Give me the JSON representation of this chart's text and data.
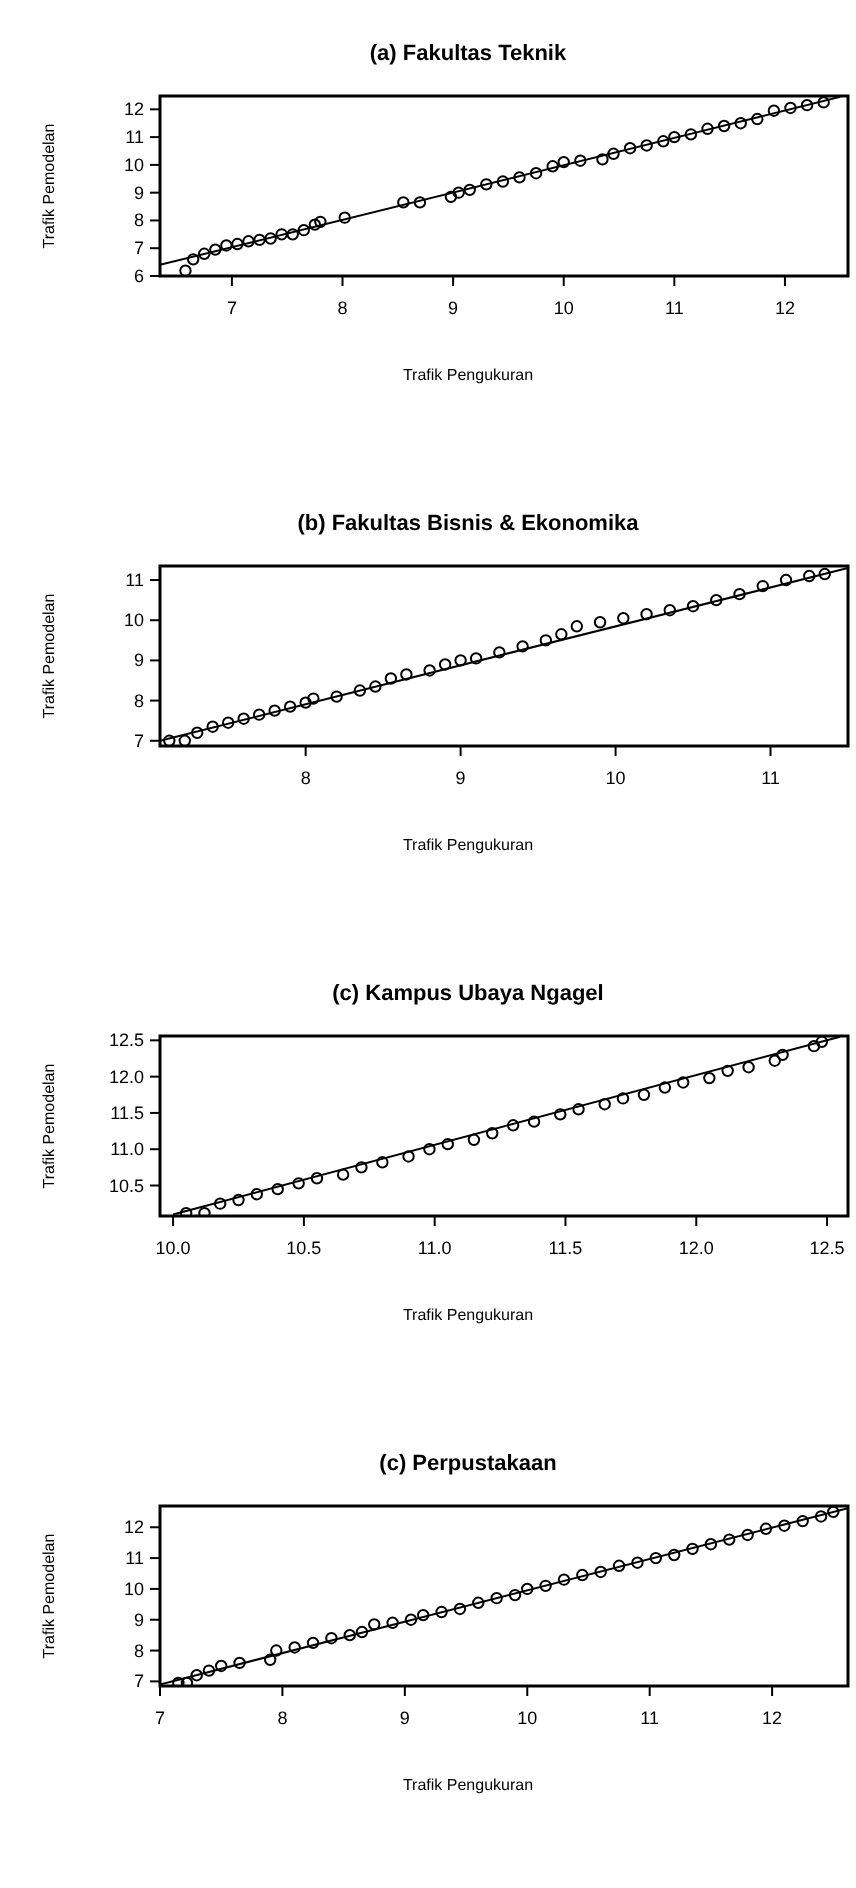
{
  "chart_data": [
    {
      "type": "scatter",
      "title": "(a) Fakultas Teknik",
      "xlabel": "Trafik Pengukuran",
      "ylabel": "Trafik Pemodelan",
      "xlim": [
        6.35,
        12.57
      ],
      "ylim": [
        6,
        12.48
      ],
      "xticks": [
        7,
        8,
        9,
        10,
        11,
        12
      ],
      "yticks": [
        6,
        7,
        8,
        9,
        10,
        11,
        12
      ],
      "grid": false,
      "series": [
        {
          "marker": "circle",
          "color": "#000000",
          "x": [
            6.58,
            6.65,
            6.75,
            6.85,
            6.95,
            7.05,
            7.15,
            7.25,
            7.35,
            7.45,
            7.55,
            7.65,
            7.75,
            7.8,
            8.02,
            8.55,
            8.7,
            8.98,
            9.05,
            9.15,
            9.3,
            9.45,
            9.6,
            9.75,
            9.9,
            10.0,
            10.15,
            10.35,
            10.45,
            10.6,
            10.75,
            10.9,
            11.0,
            11.15,
            11.3,
            11.45,
            11.6,
            11.75,
            11.9,
            12.05,
            12.2,
            12.35
          ],
          "values": [
            6.19,
            6.6,
            6.8,
            6.95,
            7.1,
            7.15,
            7.25,
            7.3,
            7.35,
            7.5,
            7.5,
            7.65,
            7.85,
            7.95,
            8.1,
            8.65,
            8.65,
            8.85,
            9.0,
            9.1,
            9.3,
            9.4,
            9.55,
            9.7,
            9.95,
            10.1,
            10.15,
            10.2,
            10.4,
            10.6,
            10.7,
            10.85,
            11.0,
            11.1,
            11.3,
            11.4,
            11.5,
            11.65,
            11.95,
            12.05,
            12.15,
            12.25
          ]
        },
        {
          "type": "line",
          "color": "#000000",
          "x": [
            6.35,
            12.5
          ],
          "values": [
            6.4,
            12.45
          ]
        }
      ]
    },
    {
      "type": "scatter",
      "title": "(b) Fakultas Bisnis & Ekonomika",
      "xlabel": "Trafik Pengukuran",
      "ylabel": "Trafik Pemodelan",
      "xlim": [
        7.06,
        11.5
      ],
      "ylim": [
        6.87,
        11.35
      ],
      "xticks": [
        8,
        9,
        10,
        11
      ],
      "yticks": [
        7,
        8,
        9,
        10,
        11
      ],
      "grid": false,
      "series": [
        {
          "marker": "circle",
          "color": "#000000",
          "x": [
            7.12,
            7.22,
            7.3,
            7.4,
            7.5,
            7.6,
            7.7,
            7.8,
            7.9,
            8.0,
            8.05,
            8.2,
            8.35,
            8.45,
            8.55,
            8.65,
            8.8,
            8.9,
            9.0,
            9.1,
            9.25,
            9.4,
            9.55,
            9.65,
            9.75,
            9.9,
            10.05,
            10.2,
            10.35,
            10.5,
            10.65,
            10.8,
            10.95,
            11.1,
            11.25,
            11.35
          ],
          "values": [
            7.0,
            7.0,
            7.2,
            7.35,
            7.45,
            7.55,
            7.65,
            7.75,
            7.85,
            7.95,
            8.05,
            8.1,
            8.25,
            8.35,
            8.55,
            8.65,
            8.75,
            8.9,
            9.0,
            9.05,
            9.2,
            9.35,
            9.5,
            9.65,
            9.85,
            9.95,
            10.05,
            10.15,
            10.25,
            10.35,
            10.5,
            10.65,
            10.85,
            11.0,
            11.1,
            11.15
          ]
        },
        {
          "type": "line",
          "color": "#000000",
          "x": [
            7.06,
            11.5
          ],
          "values": [
            7.0,
            11.3
          ]
        }
      ]
    },
    {
      "type": "scatter",
      "title": "(c) Kampus Ubaya Ngagel",
      "xlabel": "Trafik Pengukuran",
      "ylabel": "Trafik Pemodelan",
      "xlim": [
        9.95,
        12.58
      ],
      "ylim": [
        10.08,
        12.56
      ],
      "xticks": [
        {
          "value": 10,
          "label": "10.0"
        },
        10.5,
        {
          "value": 11,
          "label": "11.0"
        },
        11.5,
        {
          "value": 12,
          "label": "12.0"
        },
        12.5
      ],
      "yticks": [
        10.5,
        {
          "value": 11,
          "label": "11.0"
        },
        11.5,
        {
          "value": 12,
          "label": "12.0"
        },
        12.5
      ],
      "grid": false,
      "series": [
        {
          "marker": "circle",
          "color": "#000000",
          "x": [
            10.05,
            10.12,
            10.18,
            10.25,
            10.32,
            10.4,
            10.48,
            10.55,
            10.65,
            10.72,
            10.8,
            10.9,
            10.98,
            11.05,
            11.15,
            11.22,
            11.3,
            11.38,
            11.48,
            11.55,
            11.65,
            11.72,
            11.8,
            11.88,
            11.95,
            12.05,
            12.12,
            12.2,
            12.3,
            12.33,
            12.45,
            12.48
          ],
          "values": [
            10.12,
            10.12,
            10.25,
            10.3,
            10.38,
            10.45,
            10.53,
            10.6,
            10.65,
            10.75,
            10.82,
            10.9,
            11.0,
            11.07,
            11.13,
            11.22,
            11.33,
            11.38,
            11.48,
            11.55,
            11.62,
            11.7,
            11.75,
            11.85,
            11.92,
            11.98,
            12.08,
            12.13,
            12.22,
            12.3,
            12.42,
            12.48
          ]
        },
        {
          "type": "line",
          "color": "#000000",
          "x": [
            10.0,
            12.55
          ],
          "values": [
            10.1,
            12.55
          ]
        }
      ]
    },
    {
      "type": "scatter",
      "title": "(c) Perpustakaan",
      "xlabel": "Trafik Pengukuran",
      "ylabel": "Trafik Pemodelan",
      "xlim": [
        7,
        12.62
      ],
      "ylim": [
        6.85,
        12.69
      ],
      "xticks": [
        7,
        8,
        9,
        10,
        11,
        12
      ],
      "yticks": [
        7,
        8,
        9,
        10,
        11,
        12
      ],
      "grid": false,
      "series": [
        {
          "marker": "circle",
          "color": "#000000",
          "x": [
            7.15,
            7.22,
            7.3,
            7.4,
            7.5,
            7.65,
            7.9,
            7.95,
            8.1,
            8.25,
            8.4,
            8.55,
            8.65,
            8.75,
            8.9,
            9.05,
            9.15,
            9.3,
            9.45,
            9.6,
            9.75,
            9.9,
            10.0,
            10.15,
            10.3,
            10.45,
            10.6,
            10.75,
            10.9,
            11.05,
            11.2,
            11.35,
            11.5,
            11.65,
            11.8,
            11.95,
            12.1,
            12.25,
            12.4,
            12.5
          ],
          "values": [
            6.95,
            6.95,
            7.2,
            7.35,
            7.5,
            7.6,
            7.7,
            8.0,
            8.1,
            8.25,
            8.4,
            8.5,
            8.6,
            8.85,
            8.9,
            9.0,
            9.15,
            9.25,
            9.35,
            9.55,
            9.7,
            9.8,
            10.0,
            10.1,
            10.3,
            10.45,
            10.55,
            10.75,
            10.85,
            11.0,
            11.1,
            11.3,
            11.45,
            11.6,
            11.75,
            11.95,
            12.05,
            12.2,
            12.35,
            12.5
          ]
        },
        {
          "type": "line",
          "color": "#000000",
          "x": [
            7.0,
            12.62
          ],
          "values": [
            6.9,
            12.62
          ]
        }
      ]
    }
  ]
}
